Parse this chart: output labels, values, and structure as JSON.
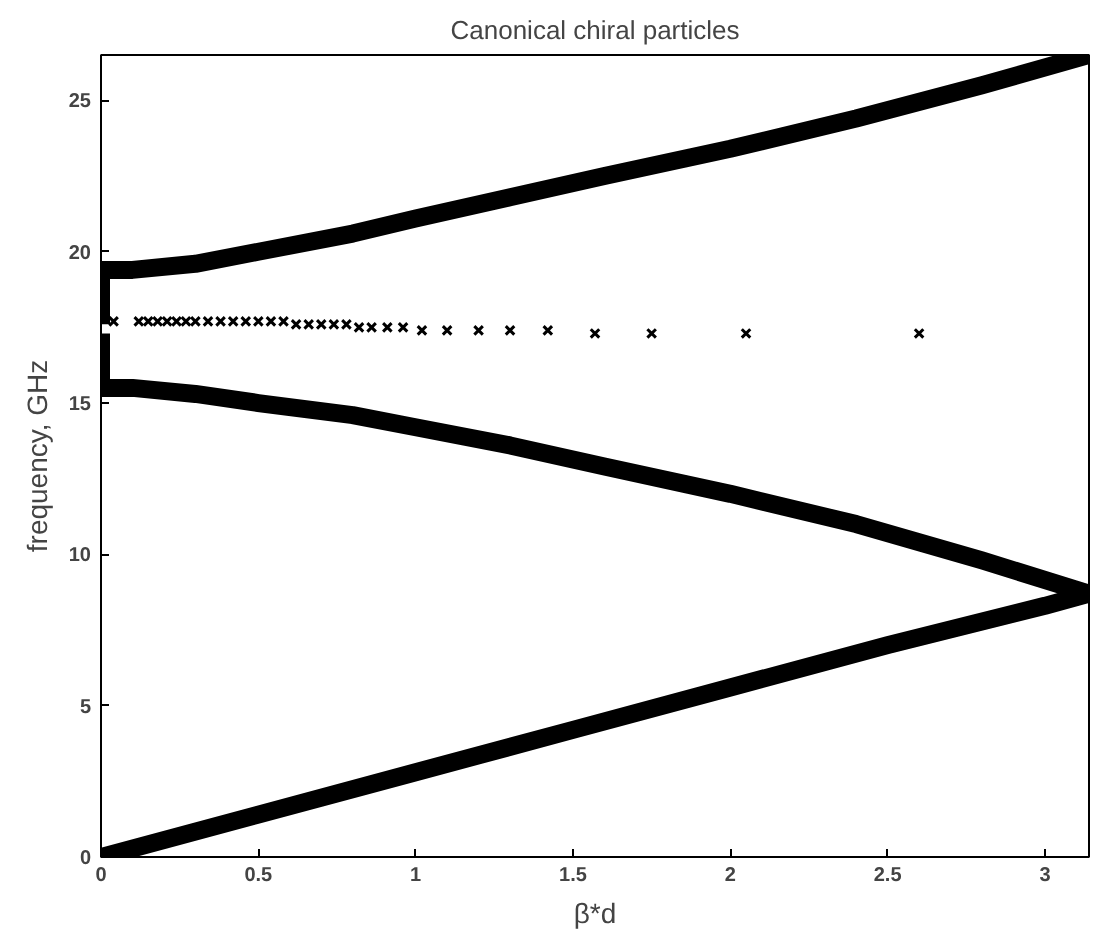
{
  "chart_data": {
    "type": "line",
    "title": "Canonical chiral particles",
    "xlabel": "β*d",
    "ylabel": "frequency, GHz",
    "xlim": [
      0,
      3.14
    ],
    "ylim": [
      0,
      26.5
    ],
    "xticks": [
      0,
      0.5,
      1,
      1.5,
      2,
      2.5,
      3
    ],
    "yticks": [
      0,
      5,
      10,
      15,
      20,
      25
    ],
    "grid": false,
    "line_style": "solid",
    "marker": "none",
    "series": [
      {
        "color": "#000000",
        "x": [
          0,
          0.5,
          1,
          1.5,
          2,
          2.5,
          3,
          3.14
        ],
        "values": [
          0,
          1.4,
          2.8,
          4.2,
          5.6,
          7.0,
          8.3,
          8.7
        ]
      },
      {
        "color": "#000000",
        "x": [
          0,
          0,
          0.1,
          0.3,
          0.5,
          0.8,
          1.0,
          1.3,
          1.6,
          2.0,
          2.4,
          2.8,
          3.14
        ],
        "values": [
          17.3,
          15.5,
          15.5,
          15.3,
          15.0,
          14.6,
          14.2,
          13.6,
          12.9,
          12.0,
          11.0,
          9.8,
          8.7
        ]
      },
      {
        "color": "#000000",
        "x": [
          0,
          0,
          0.1,
          0.3,
          0.5,
          0.8,
          1.0,
          1.3,
          1.6,
          2.0,
          2.4,
          2.8,
          3.14
        ],
        "values": [
          17.6,
          19.4,
          19.4,
          19.6,
          20.0,
          20.6,
          21.1,
          21.8,
          22.5,
          23.4,
          24.4,
          25.5,
          26.5
        ]
      },
      {
        "type": "scatter",
        "marker": "cross",
        "color": "#000000",
        "x": [
          0.04,
          0.12,
          0.15,
          0.18,
          0.21,
          0.24,
          0.27,
          0.3,
          0.34,
          0.38,
          0.42,
          0.46,
          0.5,
          0.54,
          0.58,
          0.62,
          0.66,
          0.7,
          0.74,
          0.78,
          0.82,
          0.86,
          0.91,
          0.96,
          1.02,
          1.1,
          1.2,
          1.3,
          1.42,
          1.57,
          1.75,
          2.05,
          2.6
        ],
        "values": [
          17.7,
          17.7,
          17.7,
          17.7,
          17.7,
          17.7,
          17.7,
          17.7,
          17.7,
          17.7,
          17.7,
          17.7,
          17.7,
          17.7,
          17.7,
          17.6,
          17.6,
          17.6,
          17.6,
          17.6,
          17.5,
          17.5,
          17.5,
          17.5,
          17.4,
          17.4,
          17.4,
          17.4,
          17.4,
          17.3,
          17.3,
          17.3,
          17.3
        ]
      }
    ]
  }
}
